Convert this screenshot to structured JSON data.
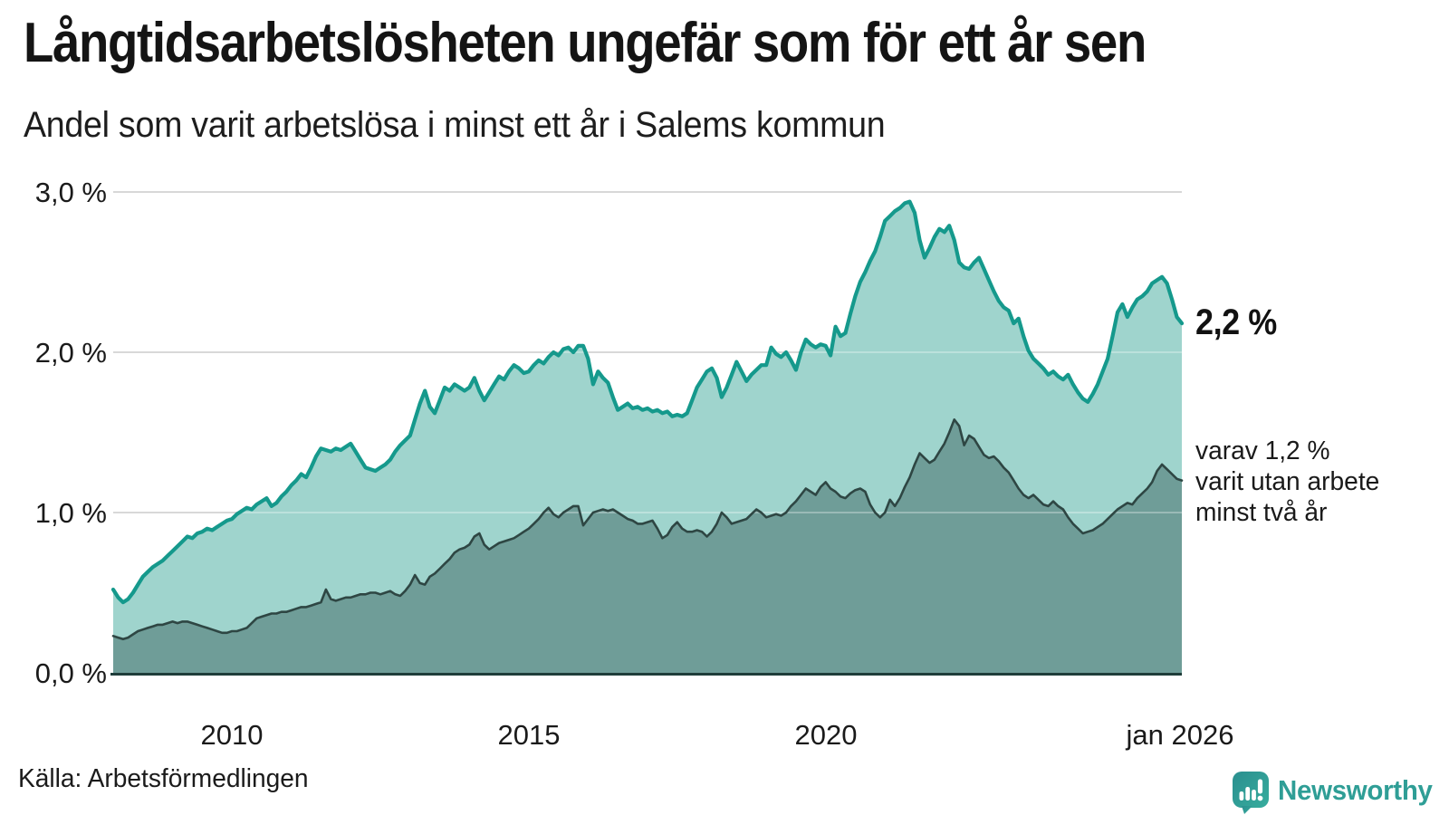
{
  "header": {
    "title": "Långtidsarbetslösheten ungefär som för ett år sen",
    "subtitle": "Andel som varit arbetslösa i minst ett år i Salems kommun"
  },
  "annotations": {
    "latest_value": "2,2 %",
    "secondary_lines": [
      "varav 1,2 %",
      "varit utan arbete",
      "minst två år"
    ]
  },
  "source": {
    "label": "Källa: Arbetsförmedlingen"
  },
  "branding": {
    "logo_text": "Newsworthy",
    "logo_icon": "speech-bubble-bar-chart-icon"
  },
  "colors": {
    "accent_teal_line": "#15998c",
    "area_light_fill": "#9fd4cd",
    "area_dark_fill": "#6f9d98",
    "dark_line": "#2e4643",
    "gridline": "#d8d8d8",
    "gridline_overlay": "rgba(255,255,255,0.3)",
    "axis_line": "#1f3d3a",
    "text": "#1a1a1a",
    "logo_teal": "#2f9e96"
  },
  "chart_data": {
    "type": "area",
    "title": "Långtidsarbetslösheten ungefär som för ett år sen",
    "subtitle": "Andel som varit arbetslösa i minst ett år i Salems kommun",
    "xlabel": "",
    "ylabel": "",
    "ylim": [
      0,
      3.0
    ],
    "grid": true,
    "legend": "none (direct labels at line ends)",
    "x_unit": "monthly, decimal years",
    "x_start": "2008-01",
    "x_end": "2026-01",
    "x_ticks": [
      {
        "t": 2010,
        "label": "2010"
      },
      {
        "t": 2015,
        "label": "2015"
      },
      {
        "t": 2020,
        "label": "2020"
      },
      {
        "t": 2026,
        "label": "jan 2026"
      }
    ],
    "y_ticks": [
      {
        "value": 3.0,
        "label": "3,0 %"
      },
      {
        "value": 2.0,
        "label": "2,0 %"
      },
      {
        "value": 1.0,
        "label": "1,0 %"
      },
      {
        "value": 0.0,
        "label": "0,0 %"
      }
    ],
    "series": [
      {
        "name": "Andel som varit arbetslösa i minst ett år",
        "end_label": "2,2 %",
        "color": "#15998c",
        "fill": "#9fd4cd",
        "values": [
          0.52,
          0.47,
          0.44,
          0.46,
          0.5,
          0.55,
          0.6,
          0.63,
          0.66,
          0.68,
          0.7,
          0.73,
          0.76,
          0.79,
          0.82,
          0.85,
          0.84,
          0.87,
          0.88,
          0.9,
          0.89,
          0.91,
          0.93,
          0.95,
          0.96,
          0.99,
          1.01,
          1.03,
          1.02,
          1.05,
          1.07,
          1.09,
          1.04,
          1.06,
          1.1,
          1.13,
          1.17,
          1.2,
          1.24,
          1.22,
          1.28,
          1.35,
          1.4,
          1.39,
          1.38,
          1.4,
          1.39,
          1.41,
          1.43,
          1.38,
          1.33,
          1.28,
          1.27,
          1.26,
          1.28,
          1.3,
          1.33,
          1.38,
          1.42,
          1.45,
          1.48,
          1.58,
          1.68,
          1.76,
          1.66,
          1.62,
          1.7,
          1.78,
          1.76,
          1.8,
          1.78,
          1.76,
          1.78,
          1.84,
          1.76,
          1.7,
          1.75,
          1.8,
          1.85,
          1.83,
          1.88,
          1.92,
          1.9,
          1.87,
          1.88,
          1.92,
          1.95,
          1.93,
          1.97,
          2.0,
          1.98,
          2.02,
          2.03,
          2.0,
          2.04,
          2.04,
          1.96,
          1.8,
          1.88,
          1.84,
          1.81,
          1.72,
          1.64,
          1.66,
          1.68,
          1.65,
          1.66,
          1.64,
          1.65,
          1.63,
          1.64,
          1.62,
          1.63,
          1.6,
          1.61,
          1.6,
          1.62,
          1.7,
          1.78,
          1.83,
          1.88,
          1.9,
          1.84,
          1.72,
          1.78,
          1.86,
          1.94,
          1.88,
          1.82,
          1.86,
          1.89,
          1.92,
          1.92,
          2.03,
          1.99,
          1.97,
          2.0,
          1.95,
          1.89,
          2.0,
          2.08,
          2.05,
          2.03,
          2.05,
          2.04,
          1.98,
          2.16,
          2.1,
          2.12,
          2.24,
          2.35,
          2.44,
          2.5,
          2.57,
          2.63,
          2.72,
          2.82,
          2.85,
          2.88,
          2.9,
          2.93,
          2.94,
          2.87,
          2.7,
          2.59,
          2.65,
          2.72,
          2.77,
          2.75,
          2.79,
          2.7,
          2.56,
          2.53,
          2.52,
          2.56,
          2.59,
          2.52,
          2.45,
          2.38,
          2.32,
          2.28,
          2.26,
          2.18,
          2.21,
          2.1,
          2.01,
          1.96,
          1.93,
          1.9,
          1.86,
          1.88,
          1.85,
          1.83,
          1.86,
          1.8,
          1.75,
          1.71,
          1.69,
          1.74,
          1.8,
          1.88,
          1.96,
          2.1,
          2.25,
          2.3,
          2.22,
          2.28,
          2.33,
          2.35,
          2.38,
          2.43,
          2.45,
          2.47,
          2.43,
          2.33,
          2.22,
          2.18
        ]
      },
      {
        "name": "varav varit utan arbete minst två år",
        "end_label": "varav 1,2 % varit utan arbete minst två år",
        "color": "#2e4643",
        "fill": "#6f9d98",
        "values": [
          0.23,
          0.22,
          0.21,
          0.22,
          0.24,
          0.26,
          0.27,
          0.28,
          0.29,
          0.3,
          0.3,
          0.31,
          0.32,
          0.31,
          0.32,
          0.32,
          0.31,
          0.3,
          0.29,
          0.28,
          0.27,
          0.26,
          0.25,
          0.25,
          0.26,
          0.26,
          0.27,
          0.28,
          0.31,
          0.34,
          0.35,
          0.36,
          0.37,
          0.37,
          0.38,
          0.38,
          0.39,
          0.4,
          0.41,
          0.41,
          0.42,
          0.43,
          0.44,
          0.52,
          0.46,
          0.45,
          0.46,
          0.47,
          0.47,
          0.48,
          0.49,
          0.49,
          0.5,
          0.5,
          0.49,
          0.5,
          0.51,
          0.49,
          0.48,
          0.51,
          0.55,
          0.61,
          0.56,
          0.55,
          0.6,
          0.62,
          0.65,
          0.68,
          0.71,
          0.75,
          0.77,
          0.78,
          0.8,
          0.85,
          0.87,
          0.8,
          0.77,
          0.79,
          0.81,
          0.82,
          0.83,
          0.84,
          0.86,
          0.88,
          0.9,
          0.93,
          0.96,
          1.0,
          1.03,
          0.99,
          0.97,
          1.0,
          1.02,
          1.04,
          1.04,
          0.92,
          0.96,
          1.0,
          1.01,
          1.02,
          1.01,
          1.02,
          1.0,
          0.98,
          0.96,
          0.95,
          0.93,
          0.93,
          0.94,
          0.95,
          0.9,
          0.84,
          0.86,
          0.91,
          0.94,
          0.9,
          0.88,
          0.88,
          0.89,
          0.88,
          0.85,
          0.88,
          0.93,
          1.0,
          0.97,
          0.93,
          0.94,
          0.95,
          0.96,
          0.99,
          1.02,
          1.0,
          0.97,
          0.98,
          0.99,
          0.98,
          1.0,
          1.04,
          1.07,
          1.11,
          1.15,
          1.13,
          1.11,
          1.16,
          1.19,
          1.15,
          1.13,
          1.1,
          1.09,
          1.12,
          1.14,
          1.15,
          1.13,
          1.05,
          1.0,
          0.97,
          1.0,
          1.08,
          1.04,
          1.09,
          1.16,
          1.22,
          1.3,
          1.37,
          1.34,
          1.31,
          1.33,
          1.38,
          1.43,
          1.5,
          1.58,
          1.54,
          1.42,
          1.48,
          1.46,
          1.41,
          1.36,
          1.34,
          1.35,
          1.32,
          1.28,
          1.25,
          1.2,
          1.15,
          1.11,
          1.09,
          1.11,
          1.08,
          1.05,
          1.04,
          1.07,
          1.04,
          1.02,
          0.97,
          0.93,
          0.9,
          0.87,
          0.88,
          0.89,
          0.91,
          0.93,
          0.96,
          0.99,
          1.02,
          1.04,
          1.06,
          1.05,
          1.09,
          1.12,
          1.15,
          1.19,
          1.26,
          1.3,
          1.27,
          1.24,
          1.21,
          1.2
        ]
      }
    ]
  }
}
